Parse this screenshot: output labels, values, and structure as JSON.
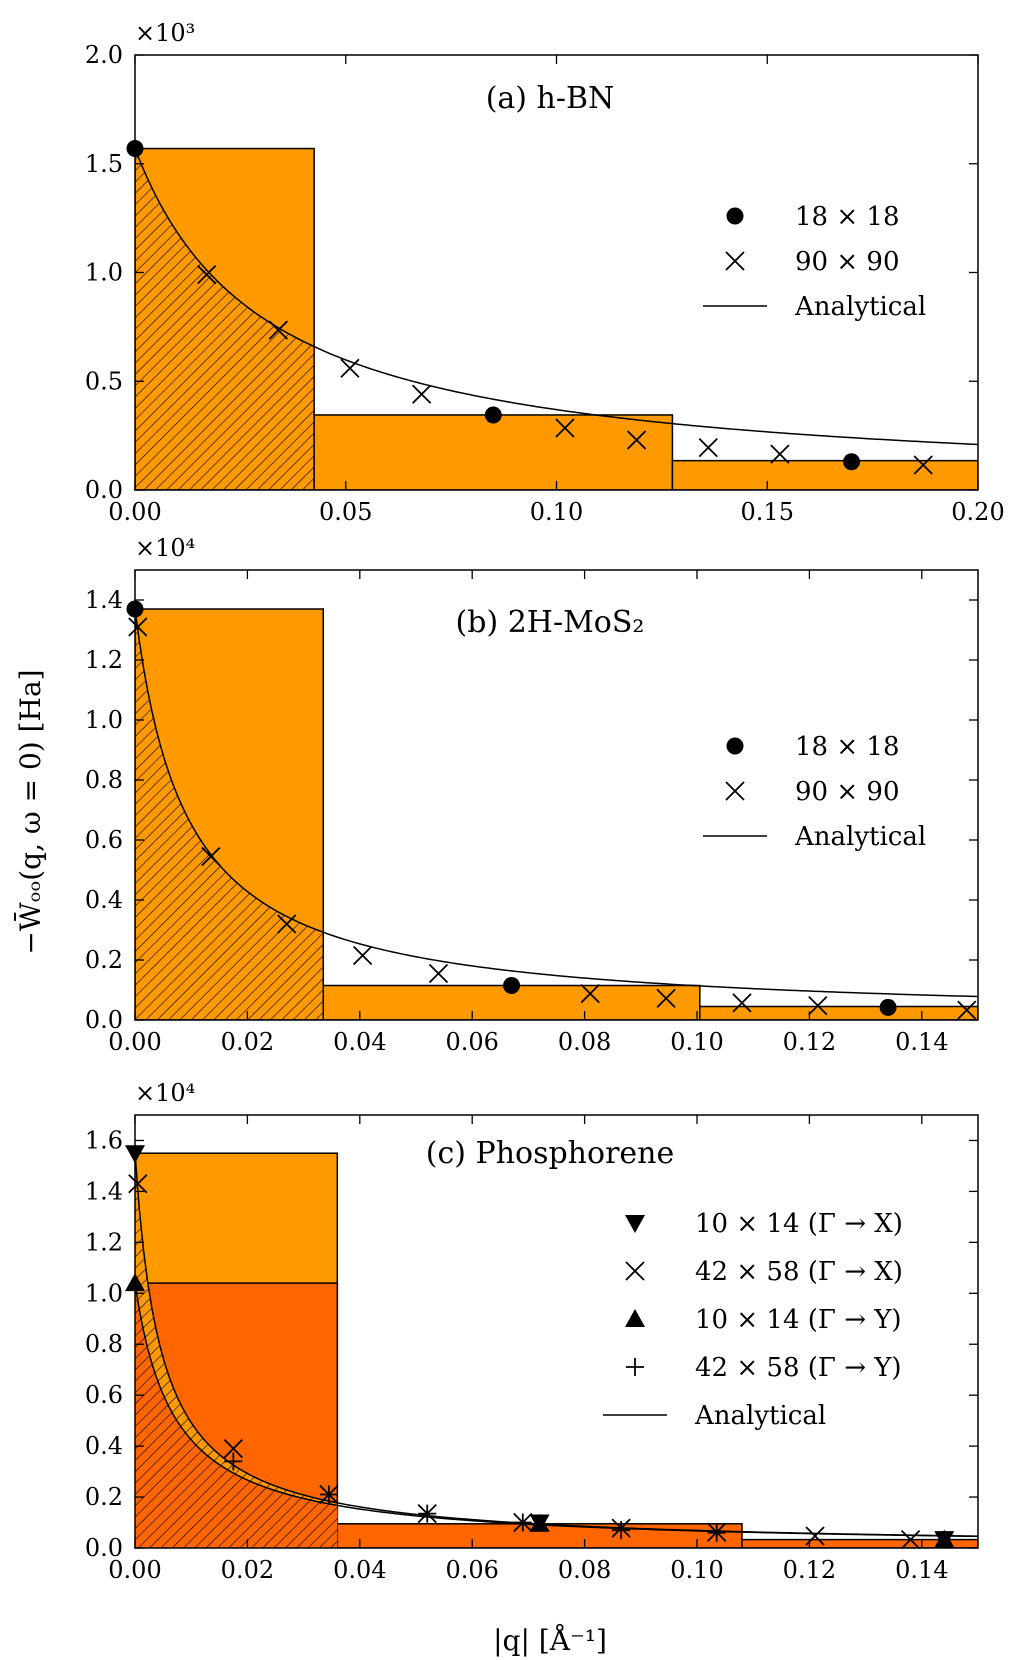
{
  "figure": {
    "ylabel": "−W̄ₒₒ(q, ω = 0) [Ha]",
    "xlabel": "|q| [Å⁻¹]"
  },
  "chart_data": [
    {
      "type": "bar",
      "title": "(a) h-BN",
      "multiplier": "×10³",
      "scale": 1000,
      "xlim": [
        0,
        0.2
      ],
      "ylim": [
        0,
        2000
      ],
      "xticks": [
        0,
        0.05,
        0.1,
        0.15,
        0.2
      ],
      "xtick_labels": [
        "0.00",
        "0.05",
        "0.10",
        "0.15",
        "0.20"
      ],
      "yticks": [
        0,
        500,
        1000,
        1500,
        2000
      ],
      "ytick_labels": [
        "0.0",
        "0.5",
        "1.0",
        "1.5",
        "2.0"
      ],
      "bars": [
        {
          "x0": 0,
          "x1": 0.0425,
          "value": 1570,
          "color": "#ff9900"
        },
        {
          "x0": 0.0425,
          "x1": 0.1275,
          "value": 345,
          "color": "#ff9900"
        },
        {
          "x0": 0.1275,
          "x1": 0.2,
          "value": 135,
          "color": "#ff9900"
        }
      ],
      "hatched": [
        {
          "x1": 0.0425,
          "curve": {
            "a": 1570,
            "k": 32.5
          }
        }
      ],
      "curves": [
        {
          "a": 1570,
          "k": 32.5,
          "x0": 0,
          "x1": 0.2
        }
      ],
      "series": [
        {
          "name": "18 × 18",
          "marker": "circle",
          "x": [
            0,
            0.085,
            0.17
          ],
          "y": [
            1570,
            345,
            130
          ]
        },
        {
          "name": "90 × 90",
          "marker": "x",
          "x": [
            0.017,
            0.034,
            0.051,
            0.068,
            0.102,
            0.119,
            0.136,
            0.153,
            0.187
          ],
          "y": [
            990,
            735,
            560,
            440,
            285,
            230,
            195,
            165,
            115
          ]
        }
      ],
      "legend": [
        {
          "label": "18 × 18",
          "marker": "circle"
        },
        {
          "label": "90 × 90",
          "marker": "x"
        },
        {
          "label": "Analytical",
          "marker": "line"
        }
      ]
    },
    {
      "type": "bar",
      "title": "(b) 2H-MoS₂",
      "multiplier": "×10⁴",
      "scale": 10000,
      "xlim": [
        0,
        0.15
      ],
      "ylim": [
        0,
        15000
      ],
      "xticks": [
        0,
        0.02,
        0.04,
        0.06,
        0.08,
        0.1,
        0.12,
        0.14
      ],
      "xtick_labels": [
        "0.00",
        "0.02",
        "0.04",
        "0.06",
        "0.08",
        "0.10",
        "0.12",
        "0.14"
      ],
      "yticks": [
        0,
        2000,
        4000,
        6000,
        8000,
        10000,
        12000,
        14000
      ],
      "ytick_labels": [
        "0.0",
        "0.2",
        "0.4",
        "0.6",
        "0.8",
        "1.0",
        "1.2",
        "1.4"
      ],
      "bars": [
        {
          "x0": 0,
          "x1": 0.0335,
          "value": 13700,
          "color": "#ff9900"
        },
        {
          "x0": 0.0335,
          "x1": 0.1005,
          "value": 1150,
          "color": "#ff9900"
        },
        {
          "x0": 0.1005,
          "x1": 0.15,
          "value": 450,
          "color": "#ff9900"
        }
      ],
      "hatched": [
        {
          "x1": 0.0335,
          "curve": {
            "a": 13700,
            "k": 110
          }
        }
      ],
      "curves": [
        {
          "a": 13700,
          "k": 110,
          "x0": 0,
          "x1": 0.15
        }
      ],
      "series": [
        {
          "name": "18 × 18",
          "marker": "circle",
          "x": [
            0,
            0.067,
            0.134
          ],
          "y": [
            13700,
            1150,
            420
          ]
        },
        {
          "name": "90 × 90",
          "marker": "x",
          "x": [
            0.0005,
            0.0135,
            0.027,
            0.0405,
            0.054,
            0.081,
            0.0945,
            0.108,
            0.1215,
            0.148
          ],
          "y": [
            13100,
            5450,
            3200,
            2150,
            1550,
            880,
            720,
            570,
            480,
            330
          ]
        }
      ],
      "legend": [
        {
          "label": "18 × 18",
          "marker": "circle"
        },
        {
          "label": "90 × 90",
          "marker": "x"
        },
        {
          "label": "Analytical",
          "marker": "line"
        }
      ]
    },
    {
      "type": "bar",
      "title": "(c) Phosphorene",
      "multiplier": "×10⁴",
      "scale": 10000,
      "xlim": [
        0,
        0.15
      ],
      "ylim": [
        0,
        17000
      ],
      "xticks": [
        0,
        0.02,
        0.04,
        0.06,
        0.08,
        0.1,
        0.12,
        0.14
      ],
      "xtick_labels": [
        "0.00",
        "0.02",
        "0.04",
        "0.06",
        "0.08",
        "0.10",
        "0.12",
        "0.14"
      ],
      "yticks": [
        0,
        2000,
        4000,
        6000,
        8000,
        10000,
        12000,
        14000,
        16000
      ],
      "ytick_labels": [
        "0.0",
        "0.2",
        "0.4",
        "0.6",
        "0.8",
        "1.0",
        "1.2",
        "1.4",
        "1.6"
      ],
      "bars": [
        {
          "x0": 0,
          "x1": 0.036,
          "value": 15500,
          "color": "#ff9900"
        },
        {
          "x0": 0,
          "x1": 0.036,
          "value": 10400,
          "color": "#ff6600"
        },
        {
          "x0": 0.036,
          "x1": 0.108,
          "value": 950,
          "color": "#ff6600"
        },
        {
          "x0": 0.108,
          "x1": 0.15,
          "value": 330,
          "color": "#ff6600"
        }
      ],
      "hatched": [
        {
          "x1": 0.036,
          "curve": {
            "a": 15500,
            "k": 215
          },
          "color": "#ff9900"
        },
        {
          "x1": 0.036,
          "curve": {
            "a": 10400,
            "k": 145
          },
          "color": "#ff6600"
        }
      ],
      "curves": [
        {
          "a": 15500,
          "k": 215,
          "x0": 0,
          "x1": 0.15
        },
        {
          "a": 10400,
          "k": 145,
          "x0": 0,
          "x1": 0.15
        }
      ],
      "series": [
        {
          "name": "10 × 14 (Γ → X)",
          "marker": "tri-down",
          "x": [
            0,
            0.072,
            0.144
          ],
          "y": [
            15500,
            1000,
            350
          ]
        },
        {
          "name": "42 × 58 (Γ → X)",
          "marker": "x",
          "x": [
            0.0005,
            0.0175,
            0.0345,
            0.052,
            0.069,
            0.0865,
            0.1035,
            0.121,
            0.138
          ],
          "y": [
            14300,
            3900,
            2100,
            1350,
            1000,
            780,
            620,
            470,
            330
          ]
        },
        {
          "name": "10 × 14 (Γ → Y)",
          "marker": "tri-up",
          "x": [
            0,
            0.072,
            0.144
          ],
          "y": [
            10400,
            950,
            330
          ]
        },
        {
          "name": "42 × 58 (Γ → Y)",
          "marker": "plus",
          "x": [
            0.0175,
            0.0345,
            0.052,
            0.069,
            0.0865,
            0.1035
          ],
          "y": [
            3400,
            2100,
            1350,
            1000,
            700,
            600
          ]
        }
      ],
      "legend": [
        {
          "label": "10 × 14 (Γ → X)",
          "marker": "tri-down"
        },
        {
          "label": "42 × 58 (Γ → X)",
          "marker": "x"
        },
        {
          "label": "10 × 14 (Γ → Y)",
          "marker": "tri-up"
        },
        {
          "label": "42 × 58 (Γ → Y)",
          "marker": "plus"
        },
        {
          "label": "Analytical",
          "marker": "line"
        }
      ]
    }
  ]
}
